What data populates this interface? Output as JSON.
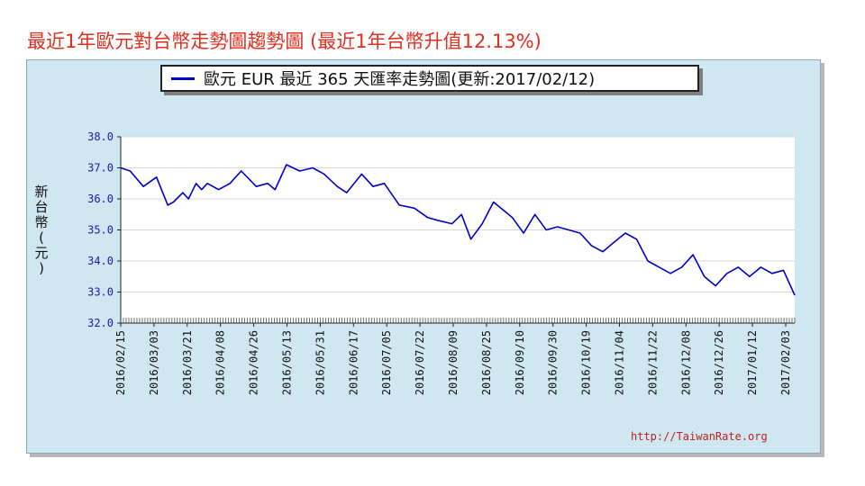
{
  "page": {
    "title": "最近1年歐元對台幣走勢圖趨勢圖 (最近1年台幣升值12.13%)",
    "source": "http://TaiwanRate.org"
  },
  "chart_data": {
    "type": "line",
    "title": "歐元 EUR 最近 365 天匯率走勢圖(更新:2017/02/12)",
    "ylabel": "新台幣(元)",
    "xlabel": "",
    "ylim": [
      32.0,
      38.0
    ],
    "yticks": [
      "32.0",
      "33.0",
      "34.0",
      "35.0",
      "36.0",
      "37.0",
      "38.0"
    ],
    "grid": true,
    "legend": "top-center",
    "line_color": "#0000cc",
    "categories": [
      "2016/02/15",
      "2016/03/03",
      "2016/03/21",
      "2016/04/08",
      "2016/04/26",
      "2016/05/13",
      "2016/05/31",
      "2016/06/17",
      "2016/07/05",
      "2016/07/22",
      "2016/08/09",
      "2016/08/25",
      "2016/09/10",
      "2016/09/30",
      "2016/10/19",
      "2016/11/04",
      "2016/11/22",
      "2016/12/08",
      "2016/12/26",
      "2017/01/12",
      "2017/02/03"
    ],
    "series": [
      {
        "name": "歐元 EUR",
        "x": [
          0,
          5,
          12,
          19,
          25,
          28,
          33,
          36,
          40,
          43,
          46,
          49,
          52,
          58,
          64,
          72,
          78,
          82,
          88,
          95,
          102,
          108,
          115,
          120,
          128,
          134,
          140,
          148,
          156,
          163,
          169,
          176,
          181,
          186,
          192,
          198,
          204,
          208,
          214,
          220,
          226,
          232,
          238,
          244,
          250,
          256,
          262,
          268,
          274,
          280,
          286,
          292,
          298,
          304,
          310,
          316,
          322,
          328,
          334,
          340,
          346,
          352,
          358
        ],
        "y": [
          37.0,
          36.9,
          36.4,
          36.7,
          35.8,
          35.9,
          36.2,
          36.0,
          36.5,
          36.3,
          36.5,
          36.4,
          36.3,
          36.5,
          36.9,
          36.4,
          36.5,
          36.3,
          37.1,
          36.9,
          37.0,
          36.8,
          36.4,
          36.2,
          36.8,
          36.4,
          36.5,
          35.8,
          35.7,
          35.4,
          35.3,
          35.2,
          35.5,
          34.7,
          35.2,
          35.9,
          35.6,
          35.4,
          34.9,
          35.5,
          35.0,
          35.1,
          35.0,
          34.9,
          34.5,
          34.3,
          34.6,
          34.9,
          34.7,
          34.0,
          33.8,
          33.6,
          33.8,
          34.2,
          33.5,
          33.2,
          33.6,
          33.8,
          33.5,
          33.8,
          33.6,
          33.7,
          32.9
        ]
      }
    ]
  }
}
